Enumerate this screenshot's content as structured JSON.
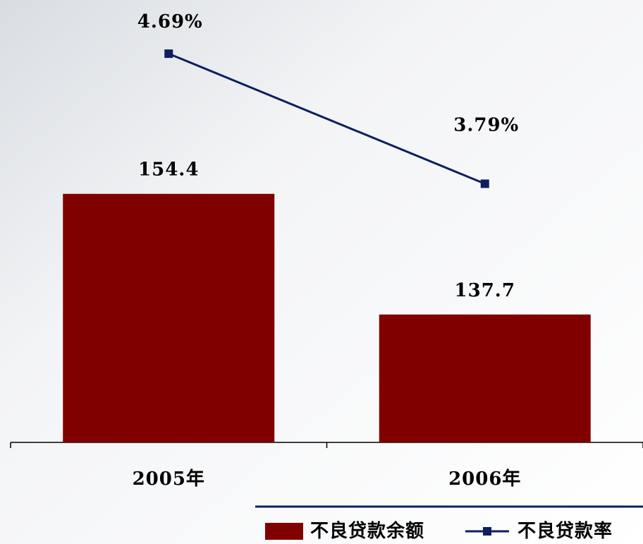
{
  "chart_data": {
    "type": "bar-line",
    "categories": [
      "2005年",
      "2006年"
    ],
    "series": [
      {
        "name": "不良贷款余额",
        "type": "bar",
        "color": "#800000",
        "values": [
          154.4,
          137.7
        ]
      },
      {
        "name": "不良贷款率",
        "type": "line",
        "color": "#0d1f5e",
        "axis": "y2",
        "values": [
          4.69,
          3.79
        ],
        "value_labels": [
          "4.69%",
          "3.79%"
        ]
      }
    ],
    "ylim": [
      120,
      180
    ],
    "y2lim": [
      2,
      5
    ],
    "grid": false,
    "legend": "bottom"
  }
}
